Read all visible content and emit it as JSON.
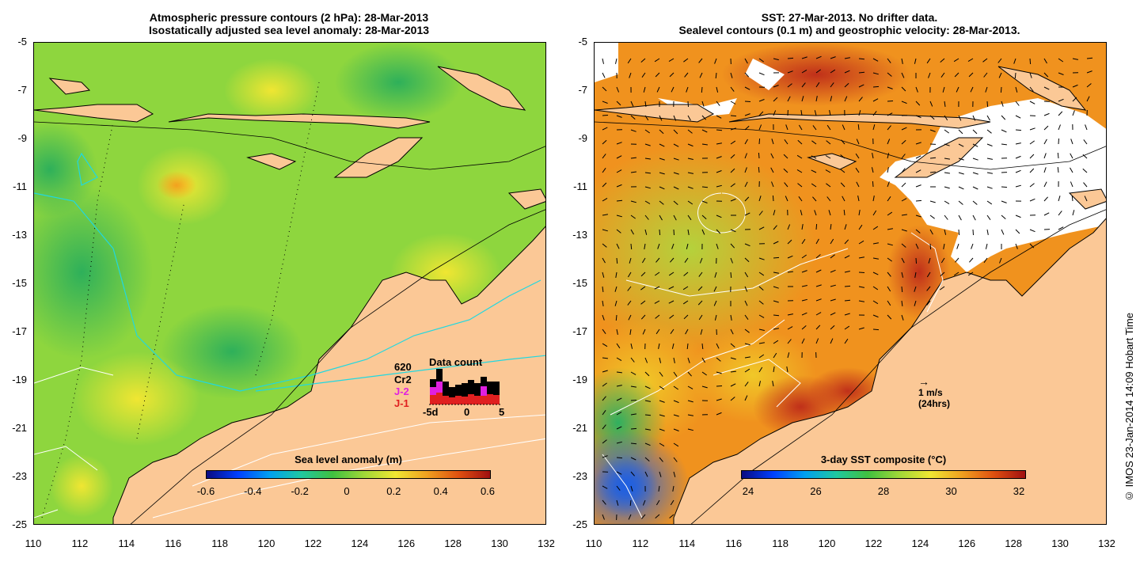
{
  "left_panel": {
    "title_line1": "Atmospheric pressure contours (2 hPa): 28-Mar-2013",
    "title_line2": "Isostatically adjusted sea level anomaly: 28-Mar-2013",
    "y_ticks": [
      "-5",
      "-7",
      "-9",
      "-11",
      "-13",
      "-15",
      "-17",
      "-19",
      "-21",
      "-23",
      "-25"
    ],
    "x_ticks": [
      "110",
      "112",
      "114",
      "116",
      "118",
      "120",
      "122",
      "124",
      "126",
      "128",
      "130",
      "132"
    ],
    "colorbar_title": "Sea level anomaly (m)",
    "colorbar_ticks": [
      "-0.6",
      "-0.4",
      "-0.2",
      "0",
      "0.2",
      "0.4",
      "0.6"
    ],
    "data_count": {
      "title": "Data count",
      "total": "620",
      "sat_cr2": "Cr2",
      "sat_j2": "J-2",
      "sat_j1": "J-1",
      "axis_left": "-5d",
      "axis_mid": "0",
      "axis_right": "5"
    }
  },
  "right_panel": {
    "title_line1": "SST: 27-Mar-2013. No drifter data.",
    "title_line2": "Sealevel contours (0.1 m) and geostrophic velocity: 28-Mar-2013.",
    "y_ticks": [
      "-5",
      "-7",
      "-9",
      "-11",
      "-13",
      "-15",
      "-17",
      "-19",
      "-21",
      "-23",
      "-25"
    ],
    "x_ticks": [
      "110",
      "112",
      "114",
      "116",
      "118",
      "120",
      "122",
      "124",
      "126",
      "128",
      "130",
      "132"
    ],
    "colorbar_title": "3-day SST composite (°C)",
    "colorbar_ticks": [
      "24",
      "26",
      "28",
      "30",
      "32"
    ],
    "scale_line1": "1 m/s",
    "scale_line2": "(24hrs)"
  },
  "credit": "© IMOS 23-Jan-2014 14:09 Hobart Time",
  "colors": {
    "land": "#fbc896",
    "sla_base": "#8ed63e",
    "sst_base": "#f0921e",
    "cloud": "#ffffff",
    "contour_cyan": "#20d8e0"
  }
}
